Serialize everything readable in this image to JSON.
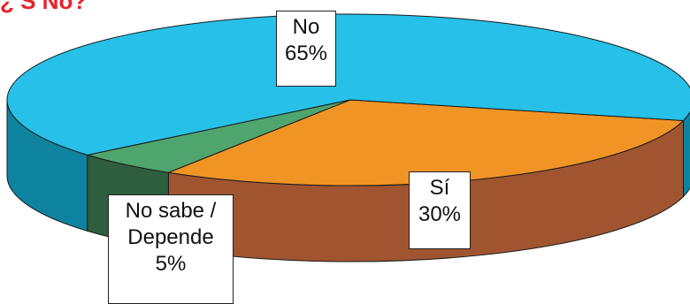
{
  "title_fragment": "¿ S No?",
  "chart_data": {
    "type": "pie",
    "style": "3d",
    "slices": [
      {
        "label": "No",
        "value": 65,
        "value_label": "65%",
        "color": "#27c0e8",
        "side_color": "#0e83a0"
      },
      {
        "label": "Sí",
        "value": 30,
        "value_label": "30%",
        "color": "#f19426",
        "side_color": "#a05530"
      },
      {
        "label_lines": [
          "No sabe /",
          "Depende"
        ],
        "value": 5,
        "value_label": "5%",
        "color": "#4fa56e",
        "side_color": "#2e5e3e"
      }
    ]
  }
}
